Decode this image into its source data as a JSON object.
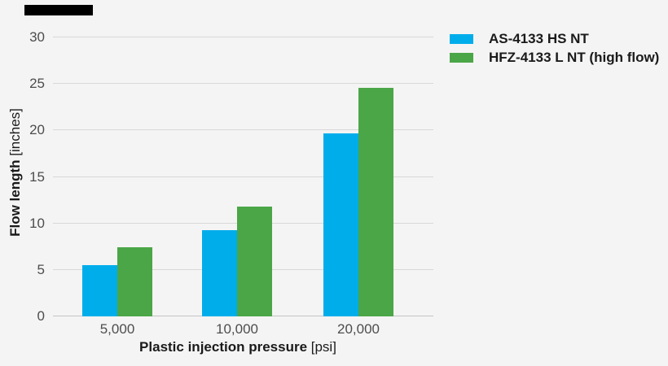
{
  "chart_data": {
    "type": "bar",
    "categories": [
      "5,000",
      "10,000",
      "20,000"
    ],
    "series": [
      {
        "name": "AS-4133 HS NT",
        "color": "#00adeb",
        "values": [
          5.5,
          9.3,
          19.7
        ]
      },
      {
        "name": "HFZ-4133 L NT (high flow)",
        "color": "#4ba647",
        "values": [
          7.4,
          11.8,
          24.6
        ]
      }
    ],
    "xlabel": {
      "main": "Plastic injection pressure",
      "unit": "[psi]"
    },
    "ylabel": {
      "main": "Flow length",
      "unit": "[inches]"
    },
    "ylim": [
      0,
      30
    ],
    "yticks": [
      0,
      5,
      10,
      15,
      20,
      25,
      30
    ],
    "grid": true,
    "legend_position": "top-right"
  },
  "colors": {
    "background": "#f4f4f4",
    "gridline": "#d8d8d8",
    "baseline": "#c4c4c4",
    "tick_text": "#4d4d4d",
    "title_text": "#1a1a1a",
    "top_bar": "#000000"
  }
}
